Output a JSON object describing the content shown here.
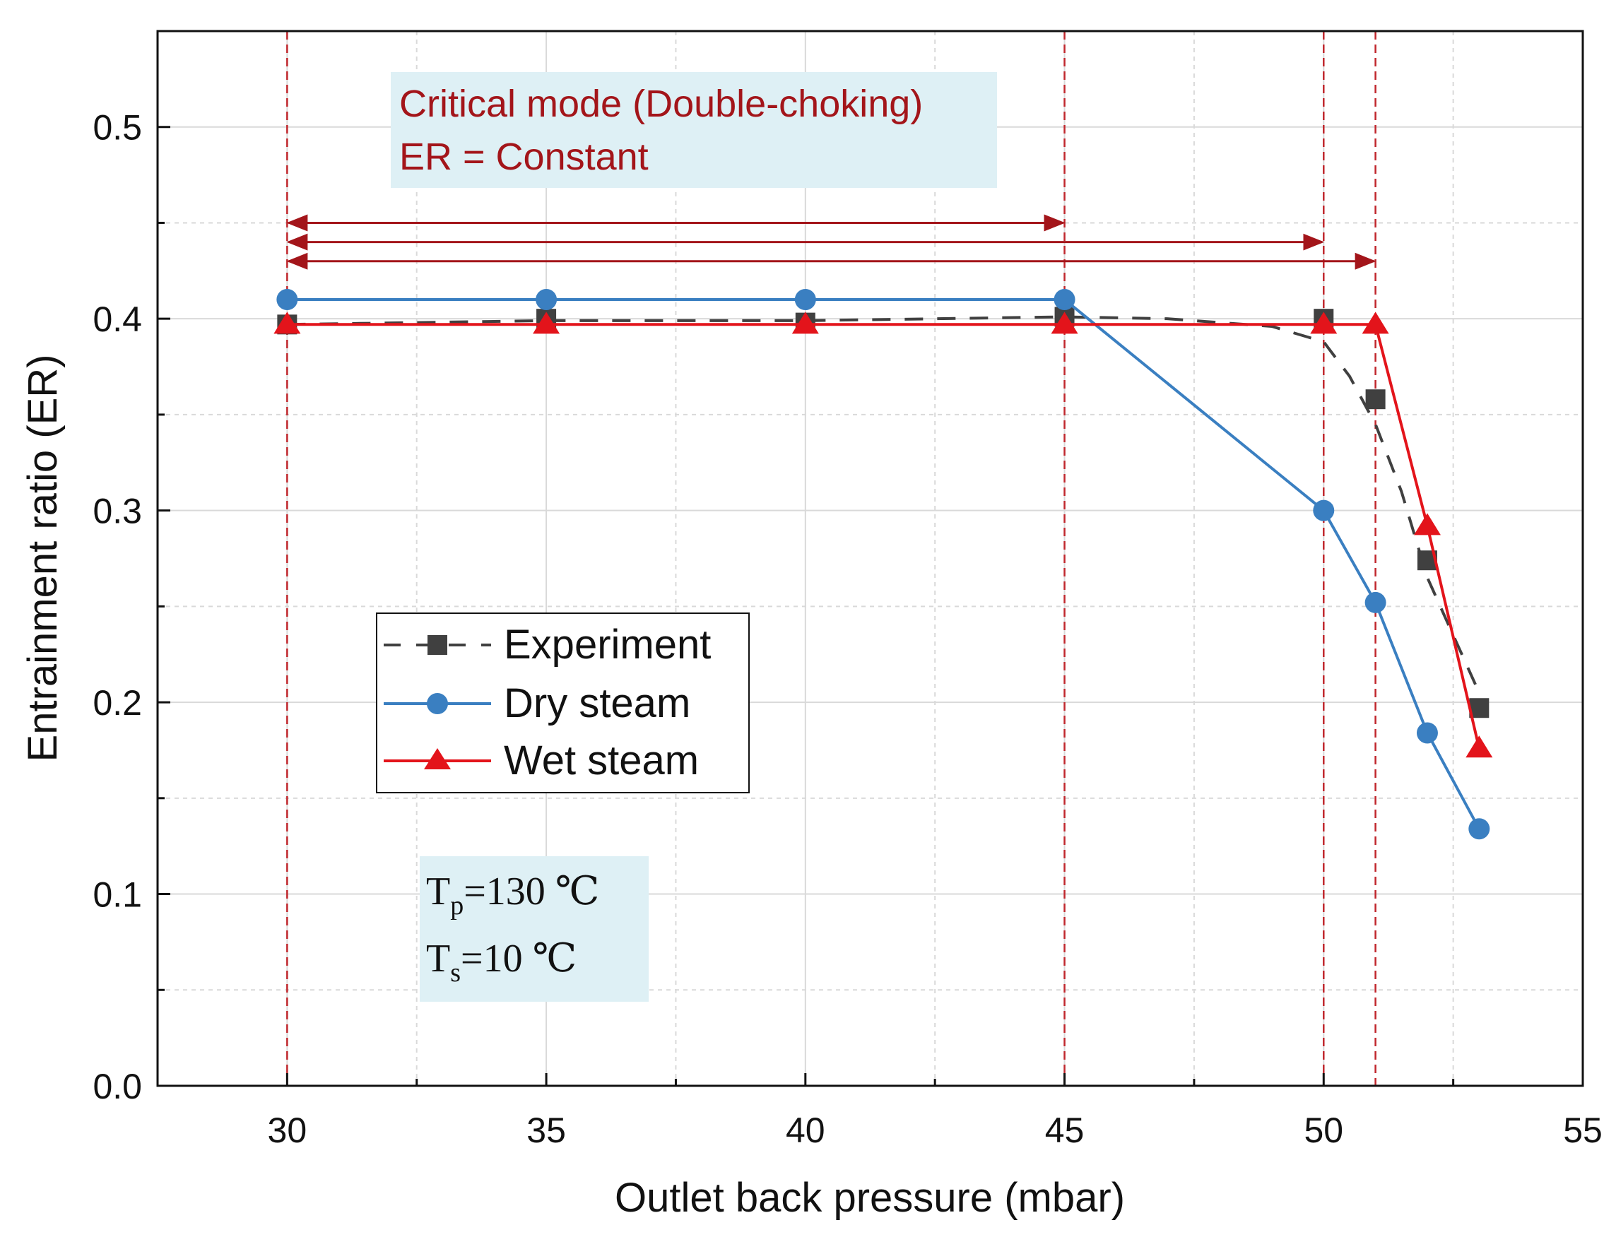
{
  "chart_data": {
    "type": "line",
    "xlabel": "Outlet back pressure (mbar)",
    "ylabel": "Entrainment ratio (ER)",
    "xlim": [
      27.5,
      55
    ],
    "ylim": [
      0,
      0.55
    ],
    "xticks": [
      30,
      35,
      40,
      45,
      50,
      55
    ],
    "xtick_labels": [
      "30",
      "35",
      "40",
      "45",
      "50",
      "55"
    ],
    "yticks": [
      0.0,
      0.1,
      0.2,
      0.3,
      0.4,
      0.5
    ],
    "ytick_labels": [
      "0.0",
      "0.1",
      "0.2",
      "0.3",
      "0.4",
      "0.5"
    ],
    "grid": true,
    "legend_position": "center-left",
    "series": [
      {
        "name": "Experiment",
        "color": "#404040",
        "line": "dashed",
        "marker": "square",
        "x": [
          30,
          35,
          40,
          45,
          50,
          51,
          52,
          53
        ],
        "y": [
          0.397,
          0.4,
          0.398,
          0.401,
          0.4,
          0.358,
          0.274,
          0.197
        ],
        "trend": [
          [
            30,
            0.397
          ],
          [
            35,
            0.399
          ],
          [
            40,
            0.399
          ],
          [
            45,
            0.401
          ],
          [
            47,
            0.4
          ],
          [
            49,
            0.396
          ],
          [
            50,
            0.388
          ],
          [
            50.5,
            0.37
          ],
          [
            51,
            0.345
          ],
          [
            51.5,
            0.31
          ],
          [
            52,
            0.265
          ],
          [
            52.5,
            0.235
          ],
          [
            53,
            0.205
          ]
        ]
      },
      {
        "name": "Dry steam",
        "color": "#3a7fc1",
        "line": "solid",
        "marker": "circle",
        "x": [
          30,
          35,
          40,
          45,
          50,
          51,
          52,
          53
        ],
        "y": [
          0.41,
          0.41,
          0.41,
          0.41,
          0.3,
          0.252,
          0.184,
          0.134
        ]
      },
      {
        "name": "Wet steam",
        "color": "#e3141b",
        "line": "solid",
        "marker": "triangle",
        "x": [
          30,
          35,
          40,
          45,
          50,
          51,
          52,
          53
        ],
        "y": [
          0.397,
          0.397,
          0.397,
          0.397,
          0.397,
          0.397,
          0.292,
          0.176
        ]
      }
    ],
    "reference_lines_x": [
      30,
      45,
      50,
      51
    ],
    "range_arrows": [
      {
        "from": 30,
        "to": 45,
        "y": 0.45
      },
      {
        "from": 30,
        "to": 50,
        "y": 0.44
      },
      {
        "from": 30,
        "to": 51,
        "y": 0.43
      }
    ],
    "annotations": {
      "mode_line1": "Critical mode (Double-choking)",
      "mode_line2": "ER = Constant",
      "cond1_main": "T",
      "cond1_sub": "p",
      "cond1_value": "=130 ℃",
      "cond2_main": "T",
      "cond2_sub": "s",
      "cond2_value": "=10 ℃"
    },
    "colors": {
      "reference": "#c0272d",
      "annotation_text": "#a3151a",
      "annotation_box": "#def0f5",
      "grid": "#d9d9d9"
    }
  }
}
